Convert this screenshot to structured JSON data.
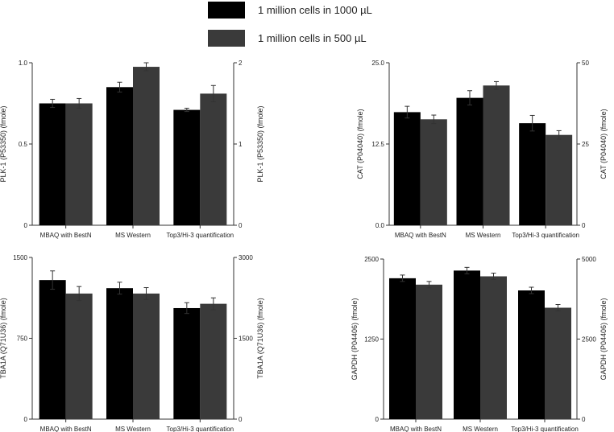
{
  "legend": {
    "items": [
      {
        "label": "1 million cells in 1000 µL",
        "color": "#000000"
      },
      {
        "label": "1 million cells in 500 µL",
        "color": "#3a3a3a"
      }
    ]
  },
  "chart_data": [
    {
      "type": "bar",
      "position": "top-left",
      "categories": [
        "MBAQ with BestN",
        "MS Western",
        "Top3/Hi-3 quantification"
      ],
      "ylabel_left": "PLK-1 (P53350) (fmole)",
      "ylabel_right": "PLK-1 (P53350) (fmole)",
      "left_axis": {
        "ylim": [
          0,
          1.0
        ],
        "ticks": [
          0,
          0.5,
          1.0
        ],
        "tick_labels": [
          "0",
          "0.5",
          "1.0"
        ]
      },
      "right_axis": {
        "ylim": [
          0,
          2
        ],
        "ticks": [
          0,
          1,
          2
        ],
        "tick_labels": [
          "0",
          "1",
          "2"
        ]
      },
      "series": [
        {
          "name": "1 million cells in 1000 µL",
          "axis": "left",
          "values": [
            0.75,
            0.85,
            0.71
          ],
          "errors": [
            0.025,
            0.03,
            0.01
          ]
        },
        {
          "name": "1 million cells in 500 µL",
          "axis": "right",
          "values": [
            1.5,
            1.95,
            1.62
          ],
          "errors": [
            0.06,
            0.05,
            0.1
          ]
        }
      ]
    },
    {
      "type": "bar",
      "position": "top-right",
      "categories": [
        "MBAQ with BestN",
        "MS Western",
        "Top3/Hi-3 quantification"
      ],
      "ylabel_left": "CAT (P04040) (fmole)",
      "ylabel_right": "CAT (P04040) (fmole)",
      "left_axis": {
        "ylim": [
          0,
          25
        ],
        "ticks": [
          0,
          12.5,
          25
        ],
        "tick_labels": [
          "0.0",
          "12.5",
          "25.0"
        ]
      },
      "right_axis": {
        "ylim": [
          0,
          50
        ],
        "ticks": [
          0,
          25,
          50
        ],
        "tick_labels": [
          "0",
          "25",
          "50"
        ]
      },
      "series": [
        {
          "name": "1 million cells in 1000 µL",
          "axis": "left",
          "values": [
            17.4,
            19.6,
            15.7
          ],
          "errors": [
            0.9,
            1.1,
            1.2
          ]
        },
        {
          "name": "1 million cells in 500 µL",
          "axis": "right",
          "values": [
            32.6,
            43.0,
            27.8
          ],
          "errors": [
            1.3,
            1.2,
            1.3
          ]
        }
      ]
    },
    {
      "type": "bar",
      "position": "bottom-left",
      "categories": [
        "MBAQ with BestN",
        "MS Western",
        "Top3/Hi-3 quantification"
      ],
      "ylabel_left": "TBA1A (Q71U36) (fmole)",
      "ylabel_right": "TBA1A (Q71U36) (fmole)",
      "left_axis": {
        "ylim": [
          0,
          1500
        ],
        "ticks": [
          0,
          750,
          1500
        ],
        "tick_labels": [
          "0",
          "750",
          "1500"
        ]
      },
      "right_axis": {
        "ylim": [
          0,
          3000
        ],
        "ticks": [
          0,
          1500,
          3000
        ],
        "tick_labels": [
          "0",
          "1500",
          "3000"
        ]
      },
      "series": [
        {
          "name": "1 million cells in 1000 µL",
          "axis": "left",
          "values": [
            1290,
            1215,
            1030
          ],
          "errors": [
            85,
            55,
            50
          ]
        },
        {
          "name": "1 million cells in 500 µL",
          "axis": "right",
          "values": [
            2330,
            2330,
            2140
          ],
          "errors": [
            130,
            110,
            110
          ]
        }
      ]
    },
    {
      "type": "bar",
      "position": "bottom-right",
      "categories": [
        "MBAQ with BestN",
        "MS Western",
        "Top3/Hi-3 quantification"
      ],
      "ylabel_left": "GAPDH (P04406) (fmole)",
      "ylabel_right": "GAPDH (P04406) (fmole)",
      "left_axis": {
        "ylim": [
          0,
          2500
        ],
        "ticks": [
          0,
          1250,
          2500
        ],
        "tick_labels": [
          "0",
          "1250",
          "2500"
        ]
      },
      "right_axis": {
        "ylim": [
          0,
          5000
        ],
        "ticks": [
          0,
          2500,
          5000
        ],
        "tick_labels": [
          "0",
          "2500",
          "5000"
        ]
      },
      "series": [
        {
          "name": "1 million cells in 1000 µL",
          "axis": "left",
          "values": [
            2200,
            2320,
            2010
          ],
          "errors": [
            50,
            50,
            50
          ]
        },
        {
          "name": "1 million cells in 500 µL",
          "axis": "right",
          "values": [
            4200,
            4460,
            3480
          ],
          "errors": [
            100,
            100,
            100
          ]
        }
      ]
    }
  ]
}
